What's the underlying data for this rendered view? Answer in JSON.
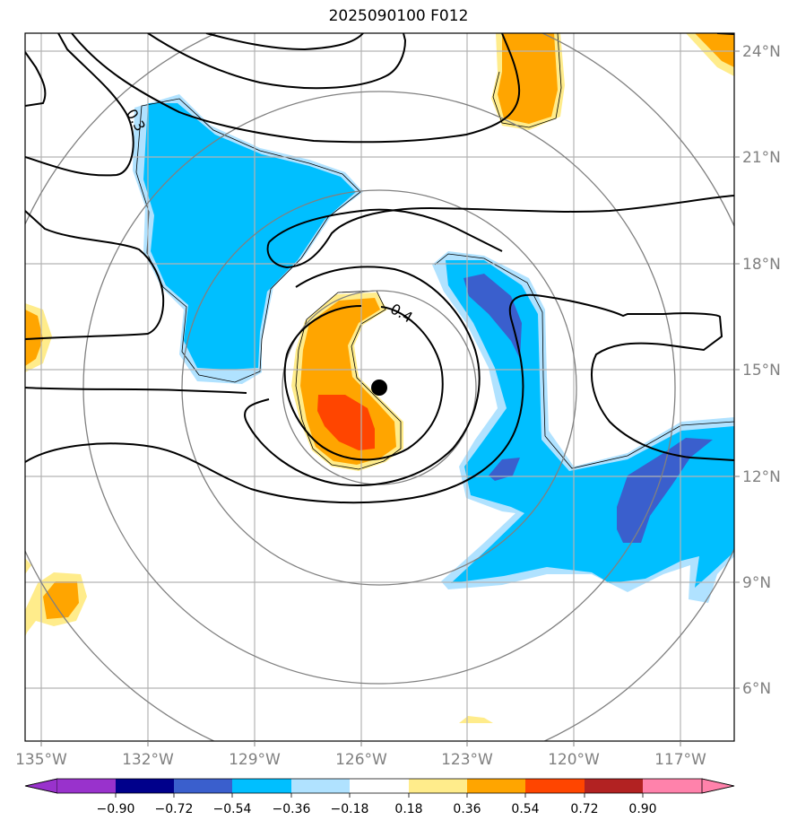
{
  "title": "2025090100 F012",
  "map": {
    "lon_range": [
      -135.5,
      -115.5
    ],
    "lat_range": [
      4.5,
      24.5
    ],
    "x_ticks": [
      {
        "value": -135,
        "label": "135°W"
      },
      {
        "value": -132,
        "label": "132°W"
      },
      {
        "value": -129,
        "label": "129°W"
      },
      {
        "value": -126,
        "label": "126°W"
      },
      {
        "value": -123,
        "label": "123°W"
      },
      {
        "value": -120,
        "label": "120°W"
      },
      {
        "value": -117,
        "label": "117°W"
      }
    ],
    "y_ticks": [
      {
        "value": 6,
        "label": "6°N"
      },
      {
        "value": 9,
        "label": "9°N"
      },
      {
        "value": 12,
        "label": "12°N"
      },
      {
        "value": 15,
        "label": "15°N"
      },
      {
        "value": 18,
        "label": "18°N"
      },
      {
        "value": 21,
        "label": "21°N"
      },
      {
        "value": 24,
        "label": "24°N"
      }
    ],
    "grid": true,
    "storm_center": {
      "lon": -125.5,
      "lat": 14.5
    },
    "range_rings_deg": [
      2.5,
      5,
      8.3
    ],
    "contour_labels": [
      "0.3",
      "0.4"
    ]
  },
  "colorbar": {
    "labels": [
      "−0.90",
      "−0.72",
      "−0.54",
      "−0.36",
      "−0.18",
      "0.18",
      "0.36",
      "0.54",
      "0.72",
      "0.90"
    ],
    "colors": [
      "#9932cc",
      "#00008b",
      "#3a5fcd",
      "#00bfff",
      "#b0e2ff",
      "#ffffff",
      "#ffec8b",
      "#ffa500",
      "#ff4500",
      "#b22222",
      "#ff82ab"
    ],
    "extend": "both"
  }
}
